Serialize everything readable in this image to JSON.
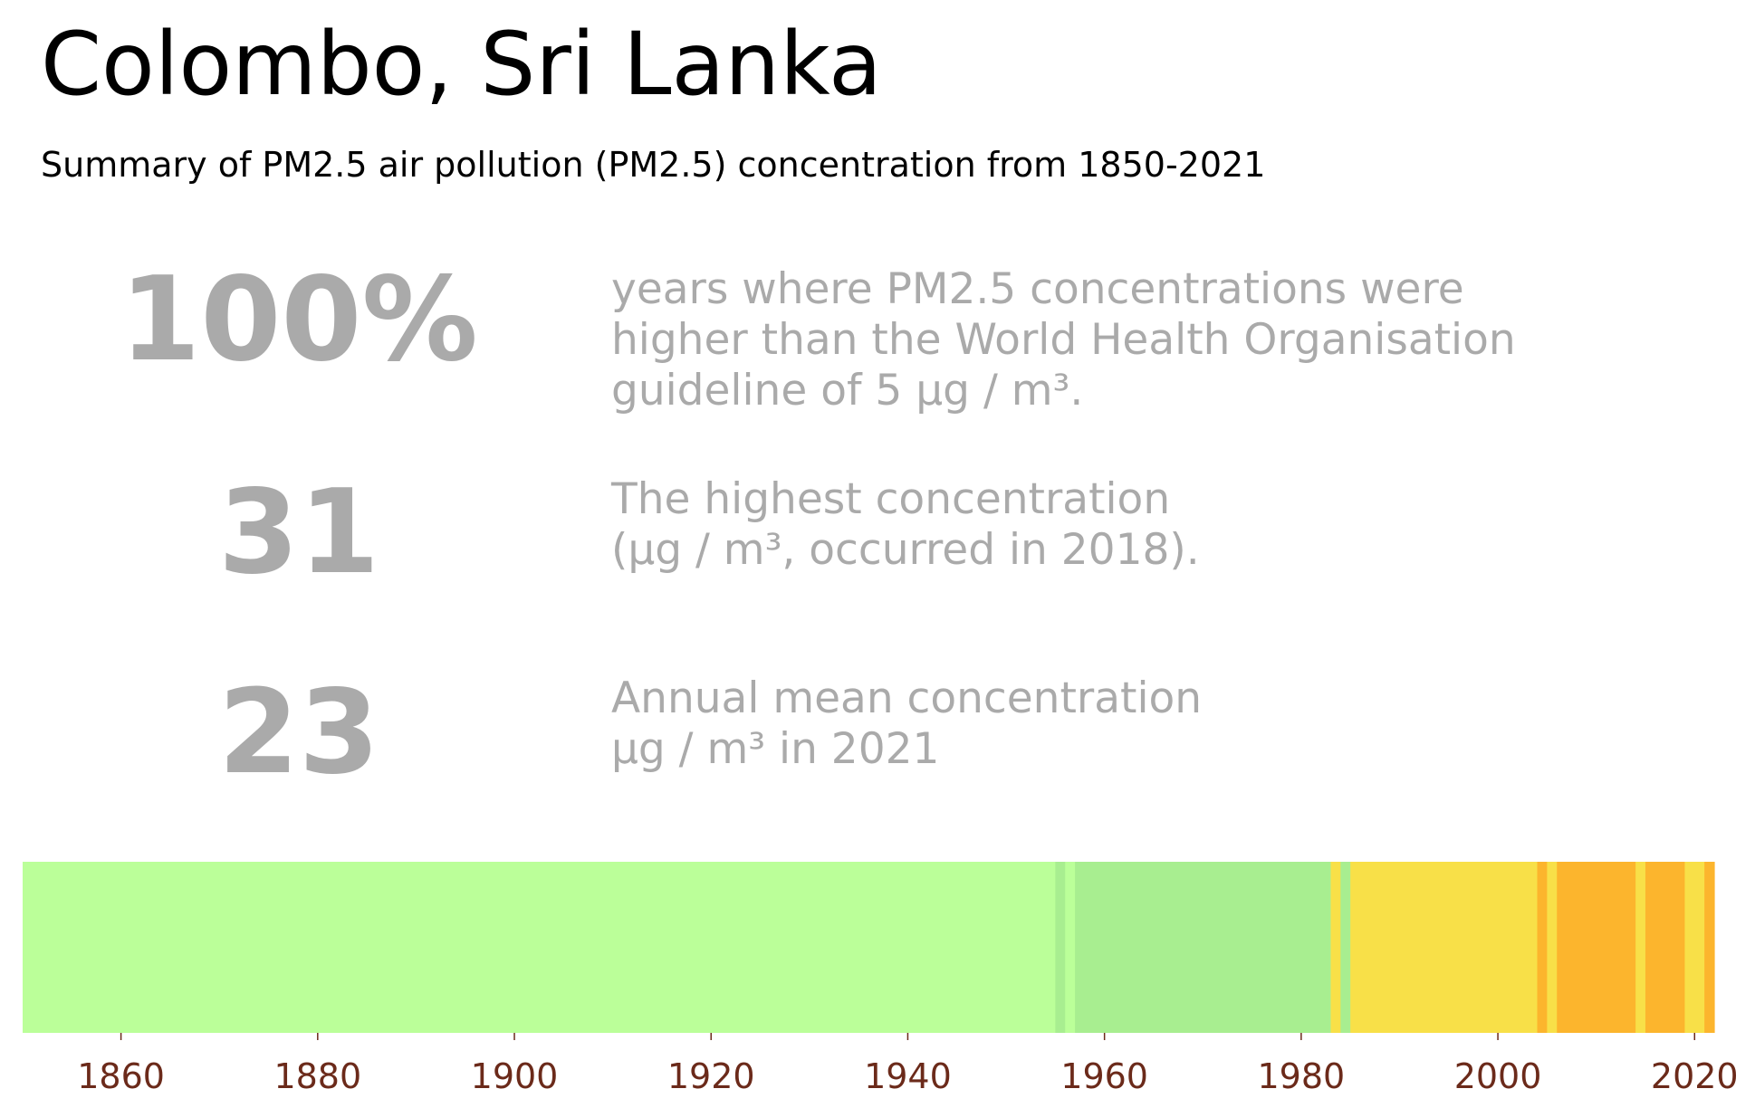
{
  "title": "Colombo, Sri Lanka",
  "subtitle": "Summary of PM2.5 air pollution (PM2.5) concentration from 1850-2021",
  "stats": [
    {
      "value": "100%",
      "lines": [
        "years where PM2.5 concentrations were",
        "higher than the World Health Organisation",
        "guideline of 5 µg / m³."
      ]
    },
    {
      "value": "31",
      "lines": [
        "The highest concentration",
        "(µg / m³, occurred in 2018)."
      ]
    },
    {
      "value": "23",
      "lines": [
        "Annual mean concentration",
        "µg / m³ in 2021"
      ]
    }
  ],
  "colors": {
    "stat_text": "#aaaaaa",
    "tick_label": "#6b2a1a"
  },
  "chart_data": {
    "type": "heatmap",
    "title": "",
    "xlabel": "",
    "ylabel": "",
    "xlim": [
      1850,
      2022
    ],
    "xticks": [
      1860,
      1880,
      1900,
      1920,
      1940,
      1960,
      1980,
      2000,
      2020
    ],
    "grid": false,
    "segments": [
      {
        "start": 1850,
        "end": 1955,
        "color": "#bbff99"
      },
      {
        "start": 1955,
        "end": 1956,
        "color": "#a8ee90"
      },
      {
        "start": 1956,
        "end": 1957,
        "color": "#bbff99"
      },
      {
        "start": 1957,
        "end": 1983,
        "color": "#a8ee90"
      },
      {
        "start": 1983,
        "end": 1984,
        "color": "#f8e048"
      },
      {
        "start": 1984,
        "end": 1985,
        "color": "#a8ee90"
      },
      {
        "start": 1985,
        "end": 2004,
        "color": "#f8e048"
      },
      {
        "start": 2004,
        "end": 2005,
        "color": "#fcb52d"
      },
      {
        "start": 2005,
        "end": 2006,
        "color": "#f8e048"
      },
      {
        "start": 2006,
        "end": 2014,
        "color": "#fcb52d"
      },
      {
        "start": 2014,
        "end": 2015,
        "color": "#f8e048"
      },
      {
        "start": 2015,
        "end": 2019,
        "color": "#fcb52d"
      },
      {
        "start": 2019,
        "end": 2021,
        "color": "#f8e048"
      },
      {
        "start": 2021,
        "end": 2022,
        "color": "#fcb52d"
      }
    ]
  }
}
